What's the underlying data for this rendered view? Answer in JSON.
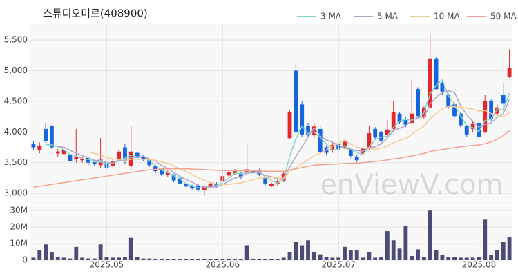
{
  "title": "스튜디오미르(408900)",
  "watermark": "enViewV.com",
  "chart_data": [
    {
      "type": "candlestick",
      "up_color": "#e5262a",
      "down_color": "#1565e0",
      "grid": true,
      "ylim": [
        2810,
        5760
      ],
      "yticks": [
        {
          "value": 3000,
          "label": "3,000"
        },
        {
          "value": 3500,
          "label": "3,500"
        },
        {
          "value": 4000,
          "label": "4,000"
        },
        {
          "value": 4500,
          "label": "4,500"
        },
        {
          "value": 5000,
          "label": "5,000"
        },
        {
          "value": 5500,
          "label": "5,500"
        }
      ],
      "open": [
        3800,
        3700,
        4050,
        4100,
        3650,
        3640,
        3620,
        3560,
        3540,
        3580,
        3530,
        3460,
        3510,
        3450,
        3550,
        3750,
        3450,
        3660,
        3600,
        3550,
        3450,
        3400,
        3300,
        3300,
        3250,
        3160,
        3120,
        3130,
        3050,
        3100,
        3160,
        3200,
        3290,
        3320,
        3330,
        3340,
        3380,
        3380,
        3260,
        3120,
        3150,
        3200,
        3900,
        5000,
        4450,
        4100,
        3950,
        4050,
        3750,
        3700,
        3800,
        3750,
        3720,
        3590,
        3650,
        3750,
        4050,
        4000,
        3950,
        4050,
        4300,
        4200,
        4150,
        4700,
        4250,
        4400,
        5200,
        4800,
        4600,
        4450,
        4300,
        4100,
        4050,
        4150,
        4000,
        4500,
        4300,
        4600,
        4900
      ],
      "high": [
        3850,
        3830,
        4150,
        4120,
        3720,
        3730,
        3640,
        4050,
        3600,
        3600,
        3550,
        3900,
        3530,
        3560,
        3720,
        3800,
        4100,
        3680,
        3630,
        3570,
        3470,
        3420,
        3370,
        3320,
        3270,
        3180,
        3140,
        3150,
        3130,
        3180,
        3180,
        3400,
        3380,
        3390,
        3350,
        3800,
        3400,
        3400,
        3270,
        3180,
        3220,
        3350,
        4350,
        5100,
        4500,
        4150,
        4150,
        4100,
        3780,
        3830,
        3830,
        3880,
        3730,
        3620,
        3950,
        4100,
        4080,
        4020,
        4200,
        4500,
        4330,
        4250,
        4850,
        4730,
        4420,
        5600,
        5220,
        4820,
        4630,
        4470,
        4320,
        4120,
        4180,
        4170,
        4600,
        4530,
        4450,
        4800,
        5350
      ],
      "low": [
        3700,
        3650,
        3820,
        3720,
        3600,
        3600,
        3500,
        3500,
        3500,
        3460,
        3450,
        3420,
        3380,
        3400,
        3520,
        3480,
        3380,
        3540,
        3530,
        3430,
        3330,
        3280,
        3270,
        3180,
        3130,
        3080,
        3060,
        3030,
        2960,
        3080,
        3090,
        3180,
        3270,
        3300,
        3230,
        3320,
        3310,
        3280,
        3130,
        3100,
        3130,
        3180,
        3880,
        3950,
        3920,
        3900,
        3900,
        3640,
        3630,
        3660,
        3670,
        3720,
        3580,
        3510,
        3620,
        3700,
        3880,
        3830,
        3920,
        4000,
        4130,
        4080,
        4120,
        4230,
        4220,
        4380,
        4680,
        4600,
        4380,
        4230,
        4080,
        3920,
        4000,
        3900,
        3980,
        4180,
        4280,
        4420,
        4880
      ],
      "close": [
        3750,
        3780,
        3850,
        3750,
        3680,
        3700,
        3530,
        3600,
        3560,
        3500,
        3480,
        3550,
        3420,
        3520,
        3680,
        3520,
        3680,
        3580,
        3560,
        3460,
        3360,
        3310,
        3340,
        3210,
        3160,
        3110,
        3090,
        3060,
        3110,
        3150,
        3110,
        3280,
        3340,
        3360,
        3260,
        3390,
        3340,
        3310,
        3160,
        3150,
        3190,
        3320,
        4330,
        4000,
        3960,
        3960,
        4090,
        3670,
        3660,
        3790,
        3700,
        3840,
        3610,
        3540,
        3740,
        3980,
        3910,
        3860,
        4040,
        4330,
        4160,
        4120,
        4300,
        4260,
        4390,
        5200,
        4700,
        4660,
        4410,
        4260,
        4110,
        3960,
        4140,
        3920,
        4500,
        4220,
        4400,
        4460,
        5050
      ],
      "series": [
        {
          "name": "3 MA",
          "color": "#86d3c9",
          "values": [
            null,
            null,
            3793,
            3793,
            3760,
            3710,
            3637,
            3610,
            3563,
            3553,
            3513,
            3510,
            3483,
            3497,
            3540,
            3573,
            3627,
            3593,
            3607,
            3533,
            3460,
            3377,
            3337,
            3287,
            3237,
            3160,
            3120,
            3087,
            3087,
            3107,
            3123,
            3180,
            3243,
            3327,
            3320,
            3337,
            3330,
            3347,
            3270,
            3207,
            3167,
            3220,
            3613,
            3883,
            4097,
            3973,
            4003,
            3907,
            3807,
            3707,
            3717,
            3777,
            3717,
            3663,
            3630,
            3753,
            3877,
            3917,
            3937,
            4077,
            4177,
            4203,
            4193,
            4227,
            4317,
            4617,
            4763,
            4853,
            4590,
            4443,
            4260,
            4110,
            4070,
            4007,
            4187,
            4213,
            4373,
            4360,
            4637
          ]
        },
        {
          "name": "5 MA",
          "color": "#b3a3c9",
          "values": [
            null,
            null,
            null,
            null,
            3762,
            3752,
            3702,
            3652,
            3614,
            3578,
            3534,
            3538,
            3502,
            3494,
            3530,
            3538,
            3584,
            3596,
            3608,
            3560,
            3528,
            3454,
            3406,
            3336,
            3276,
            3226,
            3182,
            3128,
            3106,
            3104,
            3104,
            3142,
            3198,
            3248,
            3270,
            3326,
            3338,
            3332,
            3292,
            3270,
            3230,
            3226,
            3430,
            3598,
            3760,
            3914,
            4068,
            3936,
            3868,
            3834,
            3782,
            3732,
            3720,
            3696,
            3686,
            3742,
            3758,
            3806,
            3906,
            4024,
            4060,
            4102,
            4190,
            4234,
            4246,
            4454,
            4570,
            4642,
            4672,
            4646,
            4428,
            4280,
            4176,
            4078,
            4126,
            4148,
            4236,
            4300,
            4526
          ]
        },
        {
          "name": "10 MA",
          "color": "#f3cb95",
          "values": [
            null,
            null,
            null,
            null,
            null,
            null,
            null,
            null,
            null,
            3675,
            3648,
            3625,
            3582,
            3559,
            3559,
            3541,
            3556,
            3554,
            3554,
            3550,
            3538,
            3514,
            3494,
            3447,
            3395,
            3354,
            3305,
            3253,
            3208,
            3177,
            3152,
            3144,
            3144,
            3159,
            3169,
            3197,
            3222,
            3247,
            3252,
            3261,
            3252,
            3250,
            3350,
            3414,
            3484,
            3541,
            3616,
            3657,
            3707,
            3770,
            3821,
            3873,
            3801,
            3755,
            3733,
            3735,
            3717,
            3736,
            3774,
            3828,
            3865,
            3893,
            3962,
            4034,
            4099,
            4221,
            4300,
            4380,
            4417,
            4410,
            4405,
            4389,
            4373,
            4339,
            4350,
            4301,
            4271,
            4251,
            4315
          ]
        },
        {
          "name": "50 MA",
          "color": "#f2a18b",
          "values": [
            3100,
            3115,
            3130,
            3145,
            3160,
            3175,
            3190,
            3205,
            3220,
            3235,
            3250,
            3265,
            3280,
            3295,
            3310,
            3325,
            3340,
            3355,
            3370,
            3380,
            3390,
            3395,
            3400,
            3400,
            3400,
            3400,
            3395,
            3390,
            3385,
            3380,
            3375,
            3370,
            3370,
            3370,
            3365,
            3365,
            3365,
            3365,
            3360,
            3360,
            3360,
            3360,
            3380,
            3400,
            3420,
            3440,
            3460,
            3465,
            3470,
            3475,
            3480,
            3485,
            3490,
            3495,
            3500,
            3510,
            3520,
            3530,
            3545,
            3560,
            3575,
            3590,
            3610,
            3630,
            3650,
            3680,
            3700,
            3715,
            3730,
            3745,
            3760,
            3770,
            3780,
            3790,
            3810,
            3840,
            3880,
            3940,
            4020
          ]
        }
      ]
    },
    {
      "type": "bar",
      "color": "#4b4b78",
      "grid": true,
      "ylim": [
        0,
        33
      ],
      "yticks": [
        0,
        {
          "value": 10,
          "label": "10M"
        },
        {
          "value": 20,
          "label": "20M"
        },
        {
          "value": 30,
          "label": "30M"
        }
      ],
      "categories": [
        null,
        null,
        null,
        null,
        null,
        null,
        null,
        null,
        null,
        null,
        null,
        null,
        "2025.05",
        null,
        null,
        null,
        null,
        null,
        null,
        null,
        null,
        null,
        null,
        null,
        null,
        null,
        null,
        null,
        null,
        null,
        null,
        "2025.06",
        null,
        null,
        null,
        null,
        null,
        null,
        null,
        null,
        null,
        null,
        null,
        null,
        null,
        null,
        null,
        null,
        null,
        null,
        "2025.07",
        null,
        null,
        null,
        null,
        null,
        null,
        null,
        null,
        null,
        null,
        null,
        null,
        null,
        null,
        null,
        null,
        null,
        null,
        null,
        null,
        null,
        null,
        "2025.08",
        null,
        null,
        null,
        null,
        null
      ],
      "values": [
        1.5,
        6,
        9.5,
        5,
        2,
        1.5,
        1,
        8,
        1.5,
        1,
        1,
        9.5,
        2,
        1.5,
        1.5,
        2,
        13.5,
        2,
        1,
        1,
        0.8,
        0.8,
        0.8,
        0.7,
        0.7,
        0.6,
        0.6,
        0.6,
        0.8,
        0.7,
        0.6,
        0.8,
        0.8,
        0.7,
        0.6,
        9,
        0.7,
        0.7,
        0.6,
        0.6,
        0.8,
        1.5,
        5,
        11,
        9,
        12,
        5,
        3.5,
        2,
        1.5,
        1.5,
        8,
        6,
        6,
        1.5,
        5,
        1.5,
        2,
        17.5,
        12,
        7,
        20.5,
        2.5,
        6.5,
        2,
        30,
        6,
        3,
        2,
        2,
        1.5,
        1.5,
        1.5,
        2,
        24.5,
        3,
        6,
        11,
        14
      ]
    }
  ]
}
